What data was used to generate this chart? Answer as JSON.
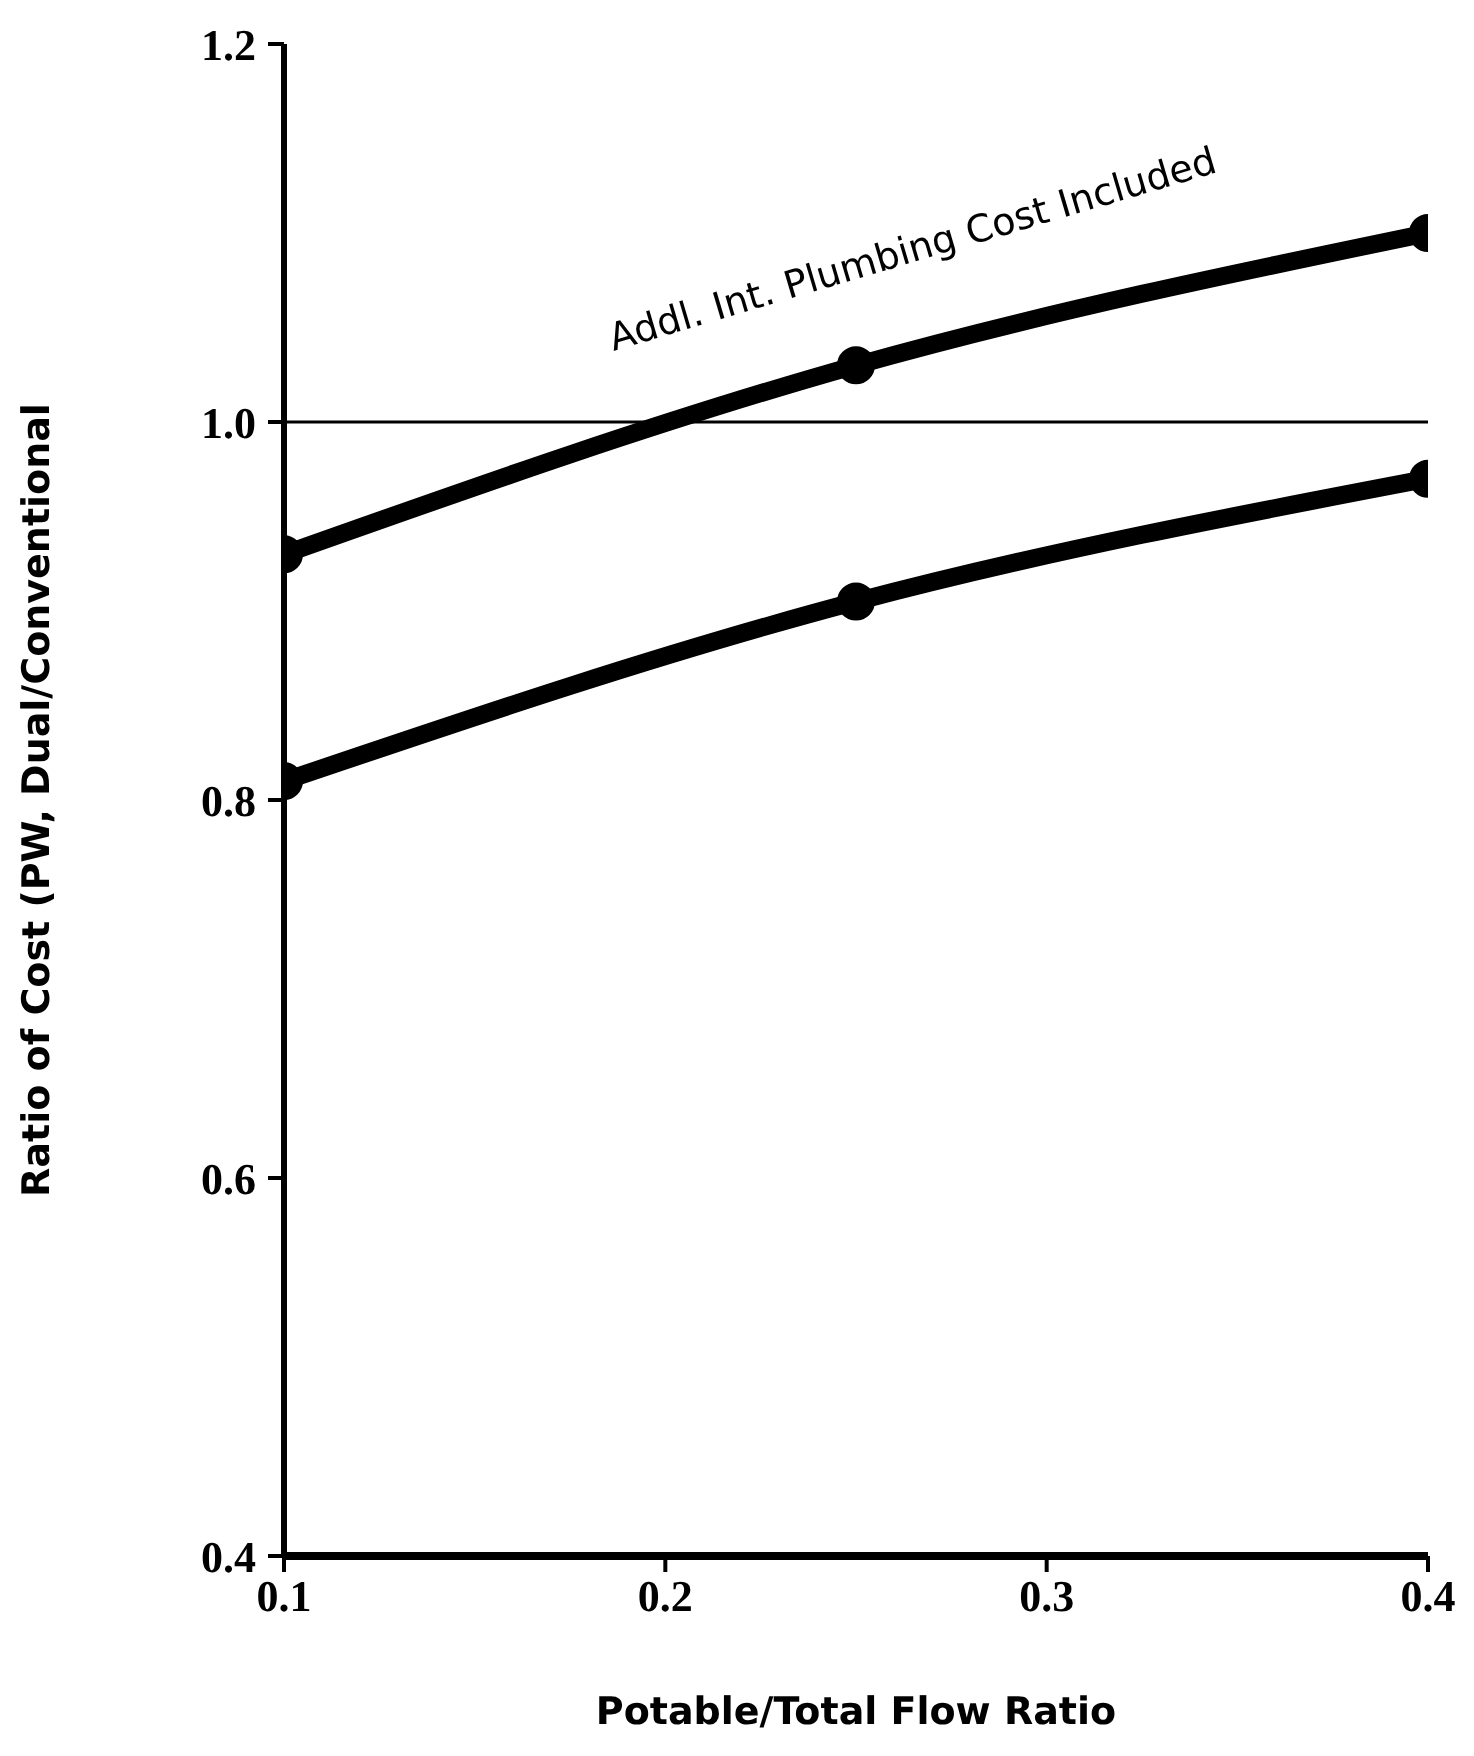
{
  "chart_data": {
    "type": "line",
    "xlabel": "Potable/Total Flow Ratio",
    "ylabel": "Ratio of Cost (PW, Dual/Conventional",
    "x": [
      0.1,
      0.25,
      0.4
    ],
    "series": [
      {
        "color": "#000000",
        "values": [
          0.93,
          1.03,
          1.1
        ]
      },
      {
        "color": "#000000",
        "values": [
          0.81,
          0.905,
          0.97
        ]
      }
    ],
    "xlim": [
      0.1,
      0.4
    ],
    "xticks": [
      0.1,
      0.2,
      0.3,
      0.4
    ],
    "ylim": [
      0.4,
      1.2
    ],
    "yticks": [
      0.4,
      0.6,
      0.8,
      {
        "value": 1,
        "label": "1.0"
      },
      1.2
    ],
    "ref_lines": [
      {
        "axis": "y",
        "value": 1.0,
        "color": "#000000"
      }
    ],
    "annotations": [
      "Addl. Int. Plumbing Cost Included"
    ],
    "marker": "circle",
    "line_style": "solid",
    "grid": false,
    "legend": false
  }
}
